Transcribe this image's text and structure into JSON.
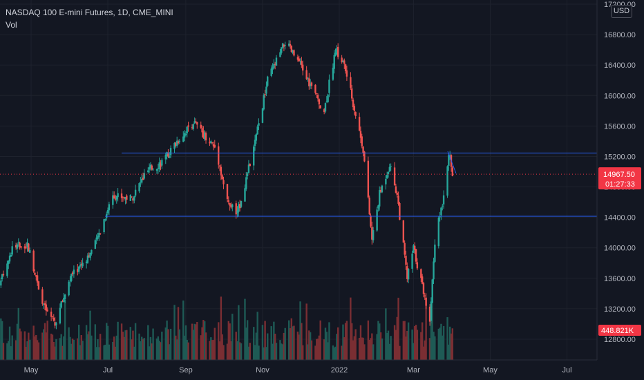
{
  "legend": {
    "title": "NASDAQ 100 E-mini Futures, 1D, CME_MINI",
    "volume_label": "Vol"
  },
  "currency_badge": "USD",
  "price_tag": {
    "value": "14967.50",
    "countdown": "01:27:33",
    "color": "#f23645"
  },
  "volume_tag": {
    "value": "448.821K",
    "color": "#f23645"
  },
  "colors": {
    "background": "#131722",
    "up": "#26a69a",
    "down": "#ef5350",
    "vol_up": "#1e5a55",
    "vol_down": "#7a2e33",
    "hline": "#2962ff",
    "grid": "#1e222d",
    "axis_text": "#b2b5be"
  },
  "chart_data": {
    "type": "candlestick",
    "title": "NASDAQ 100 E-mini Futures, 1D, CME_MINI",
    "ylim": [
      12800,
      17200
    ],
    "ytick_labels": [
      "12800.00",
      "13200.00",
      "13600.00",
      "14000.00",
      "14400.00",
      "14800.00",
      "15200.00",
      "15600.00",
      "16000.00",
      "16400.00",
      "16800.00",
      "17200.00"
    ],
    "xtick_labels": [
      "May",
      "Jul",
      "Sep",
      "Nov",
      "2022",
      "Mar",
      "May",
      "Jul"
    ],
    "last_price": 14967.5,
    "horizontal_lines": [
      15245,
      14415
    ],
    "price_path_approx": [
      [
        "2021-04-01",
        13250
      ],
      [
        "2021-04-16",
        14000
      ],
      [
        "2021-04-28",
        14050
      ],
      [
        "2021-05-12",
        13200
      ],
      [
        "2021-05-20",
        13000
      ],
      [
        "2021-06-01",
        13600
      ],
      [
        "2021-06-20",
        14000
      ],
      [
        "2021-07-05",
        14700
      ],
      [
        "2021-07-20",
        14650
      ],
      [
        "2021-08-01",
        15000
      ],
      [
        "2021-08-15",
        15150
      ],
      [
        "2021-08-25",
        15400
      ],
      [
        "2021-09-07",
        15650
      ],
      [
        "2021-09-15",
        15500
      ],
      [
        "2021-09-25",
        15300
      ],
      [
        "2021-10-04",
        14600
      ],
      [
        "2021-10-12",
        14450
      ],
      [
        "2021-10-25",
        15300
      ],
      [
        "2021-11-05",
        16200
      ],
      [
        "2021-11-19",
        16700
      ],
      [
        "2021-12-01",
        16400
      ],
      [
        "2021-12-10",
        16100
      ],
      [
        "2021-12-20",
        15800
      ],
      [
        "2021-12-29",
        16600
      ],
      [
        "2022-01-05",
        16400
      ],
      [
        "2022-01-12",
        15900
      ],
      [
        "2022-01-20",
        15300
      ],
      [
        "2022-01-27",
        14100
      ],
      [
        "2022-02-02",
        14700
      ],
      [
        "2022-02-10",
        15100
      ],
      [
        "2022-02-16",
        14700
      ],
      [
        "2022-02-24",
        13600
      ],
      [
        "2022-03-01",
        14000
      ],
      [
        "2022-03-08",
        13500
      ],
      [
        "2022-03-14",
        13050
      ],
      [
        "2022-03-18",
        14100
      ],
      [
        "2022-03-24",
        14600
      ],
      [
        "2022-03-29",
        15250
      ],
      [
        "2022-04-01",
        14967.5
      ]
    ],
    "volume": {
      "last": "448.821K",
      "typical_range": [
        300000,
        700000
      ]
    }
  }
}
